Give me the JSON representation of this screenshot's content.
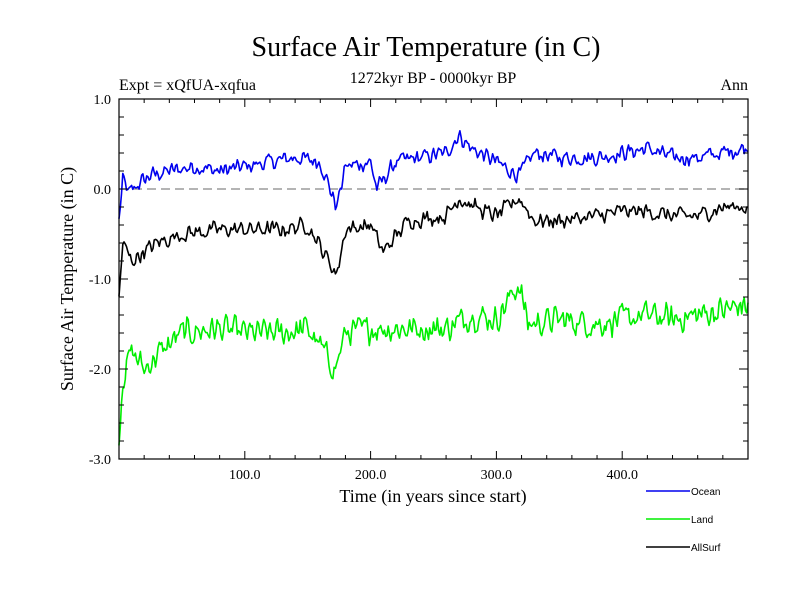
{
  "chart_data": {
    "type": "line",
    "title": "Surface Air Temperature (in C)",
    "subtitle": "1272kyr BP - 0000kyr BP",
    "experiment_label": "Expt = xQfUA-xqfua",
    "season_label": "Ann",
    "xlabel": "Time (in years since start)",
    "ylabel": "Surface Air Temperature (in C)",
    "xlim": [
      0,
      500
    ],
    "ylim": [
      -3.0,
      1.0
    ],
    "x_ticks": [
      {
        "value": 100,
        "label": "100.0"
      },
      {
        "value": 200,
        "label": "200.0"
      },
      {
        "value": 300,
        "label": "300.0"
      },
      {
        "value": 400,
        "label": "400.0"
      }
    ],
    "y_ticks": [
      {
        "value": 1.0,
        "label": "1.0"
      },
      {
        "value": 0.0,
        "label": "0.0"
      },
      {
        "value": -1.0,
        "label": "-1.0"
      },
      {
        "value": -2.0,
        "label": "-2.0"
      },
      {
        "value": -3.0,
        "label": "-3.0"
      }
    ],
    "reference_line": 0.0,
    "legend_position": "bottom-right",
    "series": [
      {
        "name": "Ocean",
        "color": "#0000ee",
        "anchors": [
          [
            0,
            -0.35
          ],
          [
            3,
            0.1
          ],
          [
            8,
            -0.05
          ],
          [
            15,
            0.05
          ],
          [
            25,
            0.15
          ],
          [
            40,
            0.2
          ],
          [
            60,
            0.25
          ],
          [
            80,
            0.2
          ],
          [
            100,
            0.25
          ],
          [
            120,
            0.3
          ],
          [
            140,
            0.35
          ],
          [
            160,
            0.3
          ],
          [
            173,
            -0.2
          ],
          [
            180,
            0.25
          ],
          [
            200,
            0.3
          ],
          [
            205,
            0.0
          ],
          [
            220,
            0.3
          ],
          [
            240,
            0.35
          ],
          [
            260,
            0.4
          ],
          [
            270,
            0.6
          ],
          [
            280,
            0.45
          ],
          [
            300,
            0.3
          ],
          [
            318,
            0.15
          ],
          [
            330,
            0.4
          ],
          [
            350,
            0.35
          ],
          [
            380,
            0.35
          ],
          [
            400,
            0.4
          ],
          [
            420,
            0.45
          ],
          [
            440,
            0.35
          ],
          [
            460,
            0.35
          ],
          [
            480,
            0.4
          ],
          [
            495,
            0.45
          ]
        ]
      },
      {
        "name": "Land",
        "color": "#00ee00",
        "anchors": [
          [
            0,
            -2.75
          ],
          [
            3,
            -2.1
          ],
          [
            10,
            -1.8
          ],
          [
            20,
            -2.0
          ],
          [
            30,
            -1.85
          ],
          [
            50,
            -1.6
          ],
          [
            80,
            -1.55
          ],
          [
            100,
            -1.6
          ],
          [
            130,
            -1.6
          ],
          [
            150,
            -1.55
          ],
          [
            172,
            -2.0
          ],
          [
            180,
            -1.6
          ],
          [
            200,
            -1.55
          ],
          [
            230,
            -1.55
          ],
          [
            260,
            -1.55
          ],
          [
            280,
            -1.4
          ],
          [
            300,
            -1.45
          ],
          [
            318,
            -1.05
          ],
          [
            325,
            -1.5
          ],
          [
            350,
            -1.45
          ],
          [
            380,
            -1.5
          ],
          [
            400,
            -1.45
          ],
          [
            420,
            -1.4
          ],
          [
            440,
            -1.45
          ],
          [
            460,
            -1.4
          ],
          [
            480,
            -1.35
          ],
          [
            495,
            -1.3
          ]
        ]
      },
      {
        "name": "AllSurf",
        "color": "#000000",
        "anchors": [
          [
            0,
            -1.2
          ],
          [
            3,
            -0.6
          ],
          [
            10,
            -0.8
          ],
          [
            20,
            -0.7
          ],
          [
            30,
            -0.6
          ],
          [
            50,
            -0.5
          ],
          [
            80,
            -0.45
          ],
          [
            100,
            -0.45
          ],
          [
            130,
            -0.45
          ],
          [
            150,
            -0.4
          ],
          [
            173,
            -0.95
          ],
          [
            180,
            -0.45
          ],
          [
            200,
            -0.4
          ],
          [
            210,
            -0.7
          ],
          [
            230,
            -0.35
          ],
          [
            260,
            -0.3
          ],
          [
            270,
            -0.1
          ],
          [
            290,
            -0.25
          ],
          [
            300,
            -0.3
          ],
          [
            318,
            -0.1
          ],
          [
            330,
            -0.35
          ],
          [
            350,
            -0.35
          ],
          [
            380,
            -0.3
          ],
          [
            400,
            -0.25
          ],
          [
            420,
            -0.25
          ],
          [
            440,
            -0.3
          ],
          [
            460,
            -0.3
          ],
          [
            480,
            -0.2
          ],
          [
            495,
            -0.2
          ]
        ]
      }
    ]
  }
}
